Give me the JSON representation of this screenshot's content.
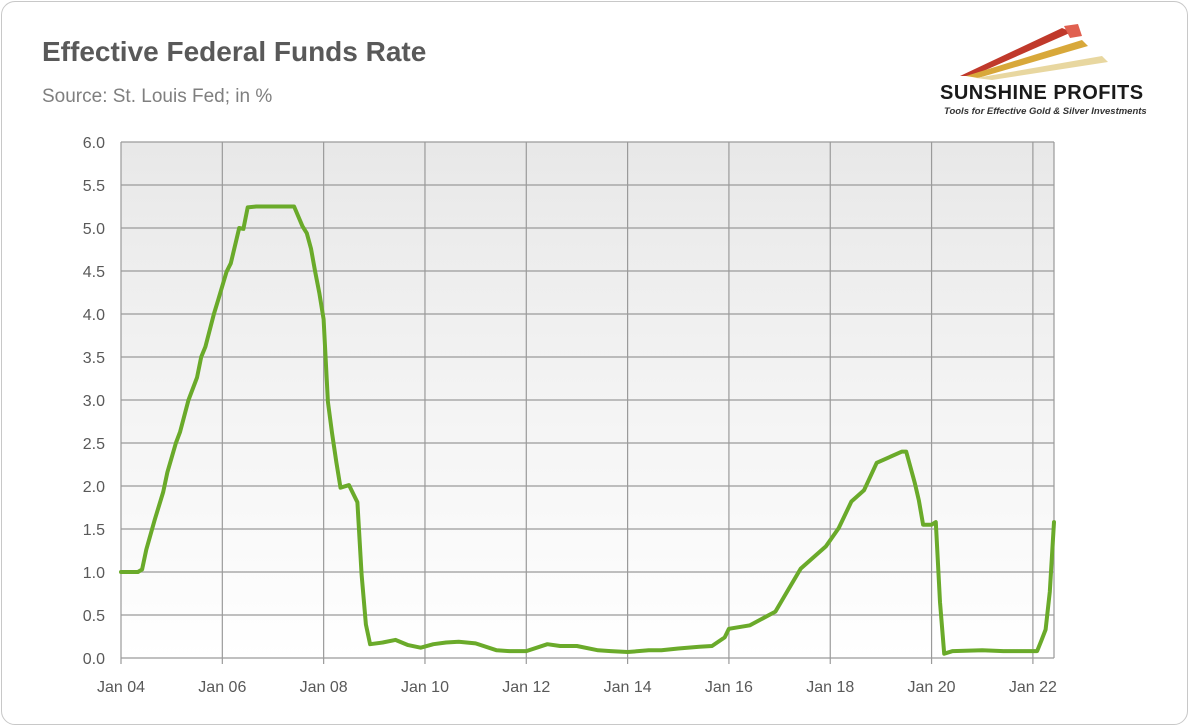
{
  "header": {
    "title": "Effective Federal Funds Rate",
    "subtitle": "Source: St. Louis Fed; in %"
  },
  "logo": {
    "brand": "SUNSHINE PROFITS",
    "tagline": "Tools for Effective Gold & Silver Investments"
  },
  "chart_data": {
    "type": "line",
    "title": "Effective Federal Funds Rate",
    "subtitle": "Source: St. Louis Fed; in %",
    "xlabel": "",
    "ylabel": "",
    "x_ticks": [
      "Jan 04",
      "Jan 06",
      "Jan 08",
      "Jan 10",
      "Jan 12",
      "Jan 14",
      "Jan 16",
      "Jan 18",
      "Jan 20",
      "Jan 22"
    ],
    "y_ticks": [
      "0.0",
      "0.5",
      "1.0",
      "1.5",
      "2.0",
      "2.5",
      "3.0",
      "3.5",
      "4.0",
      "4.5",
      "5.0",
      "5.5",
      "6.0"
    ],
    "xlim": [
      "2004-01",
      "2022-06"
    ],
    "ylim": [
      0,
      6
    ],
    "grid": true,
    "legend": "none",
    "colors": {
      "line": "#6aaa2a",
      "plot_bg_top": "#ebebeb",
      "plot_bg_bottom": "#ffffff",
      "grid": "#9a9a9a"
    },
    "series": [
      {
        "x": [
          "2004-01",
          "2004-03",
          "2004-05",
          "2004-06",
          "2004-07",
          "2004-09",
          "2004-11",
          "2004-12",
          "2005-02",
          "2005-03",
          "2005-05",
          "2005-07",
          "2005-08",
          "2005-09",
          "2005-11",
          "2005-12",
          "2006-02",
          "2006-03",
          "2006-05",
          "2006-06",
          "2006-07",
          "2006-09",
          "2007-01",
          "2007-06",
          "2007-08",
          "2007-09",
          "2007-10",
          "2007-11",
          "2007-12",
          "2008-01",
          "2008-02",
          "2008-03",
          "2008-04",
          "2008-05",
          "2008-07",
          "2008-09",
          "2008-10",
          "2008-11",
          "2008-12",
          "2009-03",
          "2009-06",
          "2009-09",
          "2009-12",
          "2010-03",
          "2010-06",
          "2010-09",
          "2011-01",
          "2011-06",
          "2011-09",
          "2012-01",
          "2012-06",
          "2012-09",
          "2013-01",
          "2013-06",
          "2013-09",
          "2014-01",
          "2014-06",
          "2014-09",
          "2015-01",
          "2015-06",
          "2015-09",
          "2015-12",
          "2016-01",
          "2016-06",
          "2016-12",
          "2017-03",
          "2017-06",
          "2017-12",
          "2018-03",
          "2018-06",
          "2018-09",
          "2018-12",
          "2019-06",
          "2019-07",
          "2019-09",
          "2019-10",
          "2019-11",
          "2020-01",
          "2020-02",
          "2020-03",
          "2020-04",
          "2020-06",
          "2021-01",
          "2021-06",
          "2021-12",
          "2022-02",
          "2022-03",
          "2022-04",
          "2022-05",
          "2022-06"
        ],
        "y": [
          1.0,
          1.0,
          1.0,
          1.03,
          1.26,
          1.61,
          1.93,
          2.16,
          2.5,
          2.63,
          3.0,
          3.26,
          3.5,
          3.62,
          4.0,
          4.16,
          4.49,
          4.59,
          5.0,
          4.99,
          5.24,
          5.25,
          5.25,
          5.25,
          5.02,
          4.94,
          4.76,
          4.49,
          4.24,
          3.94,
          2.98,
          2.61,
          2.28,
          1.98,
          2.01,
          1.81,
          0.97,
          0.39,
          0.16,
          0.18,
          0.21,
          0.15,
          0.12,
          0.16,
          0.18,
          0.19,
          0.17,
          0.09,
          0.08,
          0.08,
          0.16,
          0.14,
          0.14,
          0.09,
          0.08,
          0.07,
          0.09,
          0.09,
          0.11,
          0.13,
          0.14,
          0.24,
          0.34,
          0.38,
          0.54,
          0.79,
          1.04,
          1.3,
          1.51,
          1.82,
          1.95,
          2.27,
          2.4,
          2.4,
          2.04,
          1.83,
          1.55,
          1.55,
          1.58,
          0.65,
          0.05,
          0.08,
          0.09,
          0.08,
          0.08,
          0.08,
          0.2,
          0.33,
          0.77,
          1.58
        ]
      }
    ]
  }
}
